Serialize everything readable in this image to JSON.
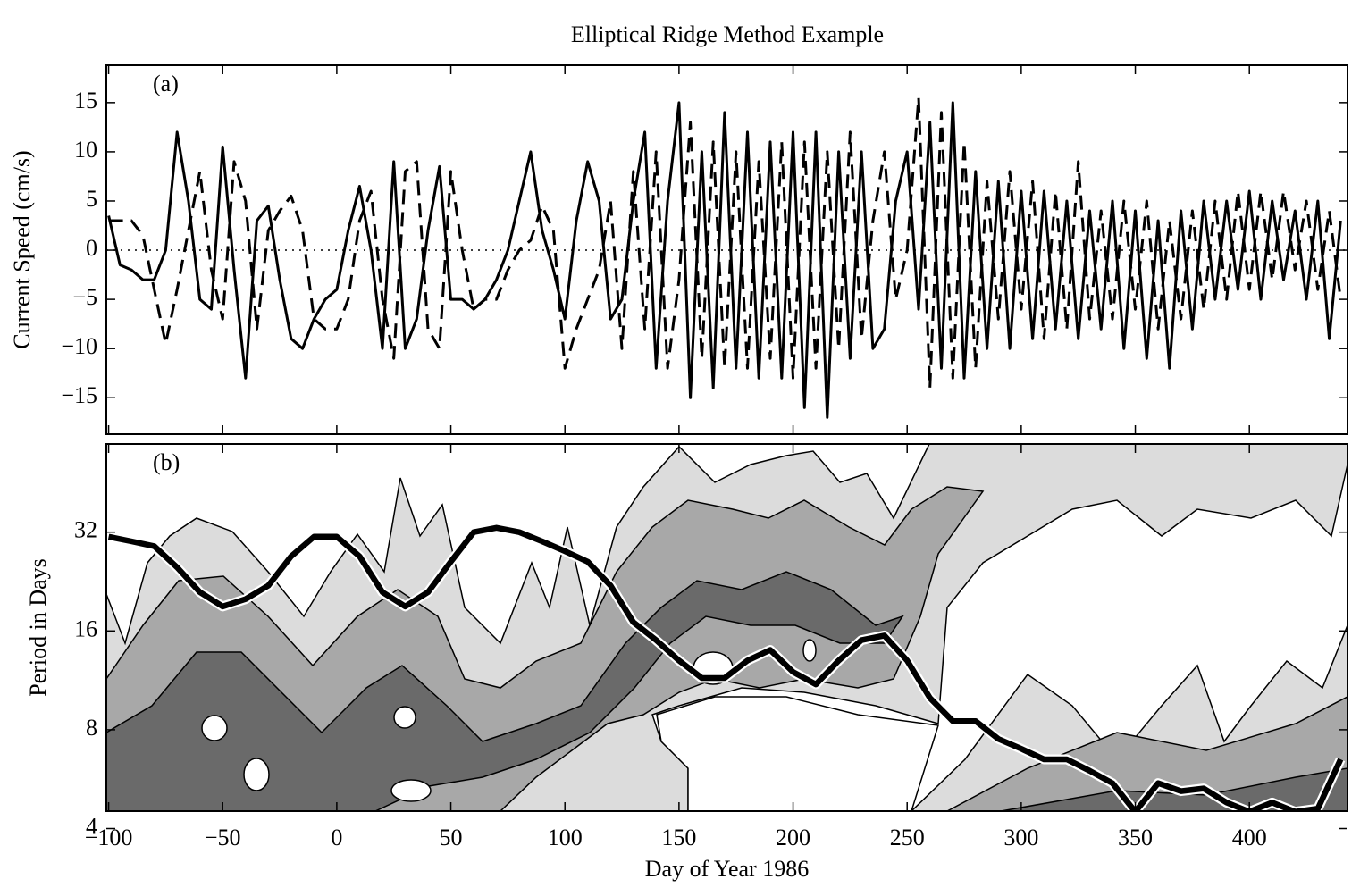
{
  "chart_data": [
    {
      "type": "line",
      "title": "Elliptical Ridge Method Example",
      "panel_label": "(a)",
      "ylabel": "Current Speed (cm/s)",
      "xlim": [
        -101,
        443
      ],
      "xticks": [
        -100,
        -50,
        0,
        50,
        100,
        150,
        200,
        250,
        300,
        350,
        400
      ],
      "ylim": [
        -18.7,
        18.8
      ],
      "yticks": [
        15,
        10,
        5,
        0,
        {
          "value": -5,
          "label": "−5"
        },
        {
          "value": -10,
          "label": "−10"
        },
        {
          "value": -15,
          "label": "−15"
        }
      ],
      "x": [
        -100,
        -95,
        -90,
        -85,
        -80,
        -75,
        -70,
        -65,
        -60,
        -55,
        -50,
        -45,
        -40,
        -35,
        -30,
        -25,
        -20,
        -15,
        -10,
        -5,
        0,
        5,
        10,
        15,
        20,
        25,
        30,
        35,
        40,
        45,
        50,
        55,
        60,
        65,
        70,
        75,
        80,
        85,
        90,
        95,
        100,
        105,
        110,
        115,
        120,
        125,
        130,
        135,
        140,
        145,
        150,
        155,
        160,
        165,
        170,
        175,
        180,
        185,
        190,
        195,
        200,
        205,
        210,
        215,
        220,
        225,
        230,
        235,
        240,
        245,
        250,
        255,
        260,
        265,
        270,
        275,
        280,
        285,
        290,
        295,
        300,
        305,
        310,
        315,
        320,
        325,
        330,
        335,
        340,
        345,
        350,
        355,
        360,
        365,
        370,
        375,
        380,
        385,
        390,
        395,
        400,
        405,
        410,
        415,
        420,
        425,
        430,
        435,
        440
      ],
      "series": [
        {
          "color": "#000000",
          "dash": "solid",
          "values": [
            3.5,
            -1.5,
            -2,
            -3,
            -3,
            0,
            12,
            5,
            -5,
            -6,
            10.5,
            -2,
            -13,
            3,
            4.5,
            -3,
            -9,
            -10,
            -7,
            -5,
            -4,
            2,
            6.5,
            0,
            -10,
            9,
            -10,
            -7,
            2,
            8.5,
            -5,
            -5,
            -6,
            -5,
            -3,
            0,
            5,
            10,
            2,
            -2,
            -7,
            3,
            9,
            5,
            -7,
            -5,
            5,
            12,
            -12,
            5,
            15,
            -15,
            10,
            -14,
            14,
            -12,
            12,
            -13,
            11,
            -13,
            12,
            -16,
            12,
            -17,
            10,
            -11,
            10,
            -10,
            -8,
            5,
            10,
            -6,
            13,
            -12,
            15,
            -13,
            8,
            -10,
            7,
            -10,
            6,
            -9,
            6,
            -8,
            5,
            -9,
            4,
            -8,
            5,
            -10,
            4,
            -11,
            3,
            -12,
            4,
            -8,
            5,
            -5,
            5,
            -4,
            6,
            -5,
            5,
            -3,
            4,
            -5,
            5,
            -9,
            3
          ]
        },
        {
          "color": "#000000",
          "dash": "dashed",
          "values": [
            3,
            3,
            3,
            1.5,
            -4,
            -9.5,
            -4,
            2,
            8,
            -2,
            -7,
            9,
            5,
            -8,
            2,
            4,
            5.5,
            2,
            -7,
            -8,
            -8,
            -5,
            3,
            6,
            -5,
            -11,
            8,
            9,
            -8,
            -10,
            8,
            0,
            -6,
            -5,
            -5,
            -2,
            0,
            1,
            4.5,
            2,
            -12,
            -8,
            -5,
            -2,
            5,
            -10,
            8,
            -8,
            10,
            -12,
            -3,
            13,
            -11,
            11,
            -12,
            10,
            -12,
            9,
            -11,
            11,
            -13,
            11,
            -12,
            10,
            -10,
            12,
            -9,
            3,
            10,
            -5,
            0,
            15.5,
            -14,
            14,
            -13,
            11,
            -12,
            7,
            -7,
            8,
            -6,
            7,
            -9,
            6,
            -8,
            9,
            -7,
            4,
            -7,
            5,
            -6,
            5,
            -8,
            3,
            -7,
            4,
            -6,
            5,
            -5,
            6,
            -4,
            6,
            -3,
            6,
            -2,
            5,
            -4,
            4,
            -5
          ]
        }
      ]
    },
    {
      "type": "contour",
      "panel_label": "(b)",
      "ylabel": "Period in Days",
      "xlabel": "Day of Year 1986",
      "log_scale_y": true,
      "xlim": [
        -101,
        443
      ],
      "xticks": [
        {
          "value": -100,
          "label": "−100"
        },
        {
          "value": -50,
          "label": "−50"
        },
        0,
        50,
        100,
        150,
        200,
        250,
        300,
        350,
        400
      ],
      "ylim": [
        4.52,
        59.4
      ],
      "yticks": [
        4,
        8,
        16,
        32
      ],
      "x": [
        -100,
        -90,
        -80,
        -70,
        -60,
        -50,
        -40,
        -30,
        -20,
        -10,
        0,
        10,
        20,
        30,
        40,
        50,
        60,
        70,
        80,
        90,
        100,
        110,
        120,
        130,
        140,
        150,
        160,
        170,
        180,
        190,
        200,
        210,
        220,
        230,
        240,
        250,
        260,
        270,
        280,
        290,
        300,
        310,
        320,
        330,
        340,
        350,
        360,
        370,
        380,
        390,
        400,
        410,
        420,
        430,
        440
      ],
      "series": [
        {
          "color": "#000000",
          "values": [
            31,
            30,
            29,
            25,
            21,
            19,
            20,
            22,
            27,
            31,
            31,
            27,
            21,
            19,
            21,
            26,
            32,
            33,
            32,
            30,
            28,
            26,
            22,
            17,
            15,
            13,
            11.5,
            11.5,
            13,
            14,
            12,
            11,
            13,
            15,
            15.5,
            13,
            10,
            8.5,
            8.5,
            7.5,
            7,
            6.5,
            6.5,
            6,
            5.5,
            4.5,
            5.5,
            5.2,
            5.3,
            4.8,
            4.5,
            4.8,
            4.5,
            4.6,
            6.5
          ]
        }
      ]
    }
  ]
}
